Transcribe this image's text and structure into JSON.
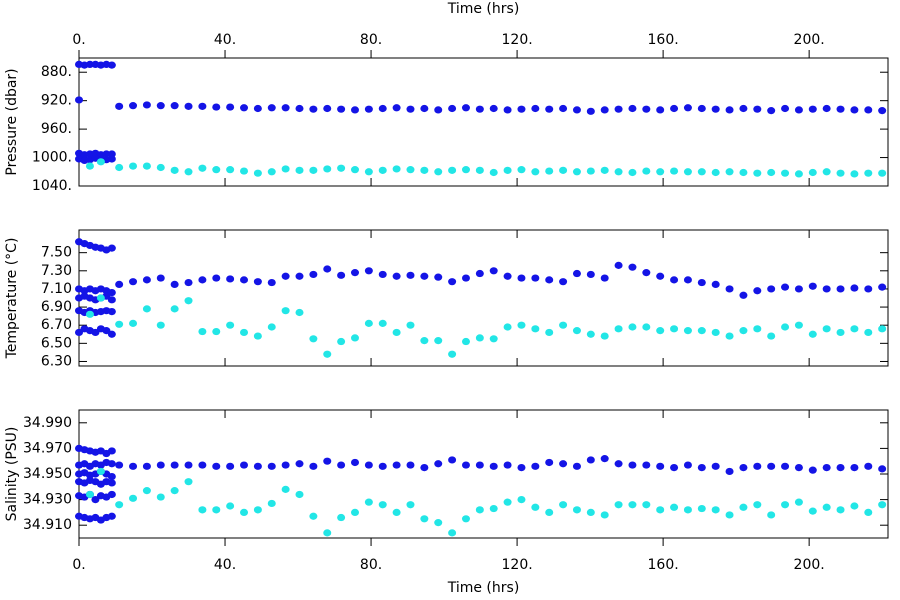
{
  "chart_data": [
    {
      "type": "scatter",
      "xlabel": "Time (hrs)",
      "ylabel": "Pressure (dbar)",
      "xtick_labels": "top",
      "xlim": [
        0,
        221.6
      ],
      "xticks": [
        {
          "value": 0,
          "label": "0."
        },
        {
          "value": 40,
          "label": "40."
        },
        {
          "value": 80,
          "label": "80."
        },
        {
          "value": 120,
          "label": "120."
        },
        {
          "value": 160,
          "label": "160."
        },
        {
          "value": 200,
          "label": "200."
        }
      ],
      "ylim": [
        1040,
        860
      ],
      "yticks": [
        {
          "value": 880,
          "label": "880."
        },
        {
          "value": 920,
          "label": "920."
        },
        {
          "value": 960,
          "label": "960."
        },
        {
          "value": 1000,
          "label": "1000."
        },
        {
          "value": 1040,
          "label": "1040."
        }
      ],
      "x": [
        11,
        14.8,
        18.6,
        22.4,
        26.2,
        30,
        33.8,
        37.6,
        41.4,
        45.2,
        49,
        52.8,
        56.6,
        60.4,
        64.2,
        68,
        71.8,
        75.6,
        79.4,
        83.2,
        87,
        90.8,
        94.6,
        98.4,
        102.2,
        106,
        109.8,
        113.6,
        117.4,
        121.2,
        125,
        128.8,
        132.6,
        136.4,
        140.2,
        144,
        147.8,
        151.6,
        155.4,
        159.2,
        163,
        166.8,
        170.6,
        174.4,
        178.2,
        182,
        185.8,
        189.6,
        193.4,
        197.2,
        201,
        204.8,
        208.6,
        212.4,
        216.2,
        220
      ],
      "series": [
        {
          "color": "#1414e6",
          "values": [
            928,
            927,
            926,
            927,
            927,
            928,
            928,
            929,
            929,
            930,
            931,
            930,
            930,
            931,
            932,
            931,
            932,
            933,
            932,
            931,
            930,
            932,
            931,
            933,
            931,
            930,
            932,
            931,
            933,
            932,
            931,
            932,
            931,
            933,
            935,
            933,
            932,
            931,
            932,
            933,
            931,
            930,
            931,
            932,
            933,
            931,
            932,
            934,
            931,
            933,
            932,
            931,
            932,
            933,
            933,
            934
          ]
        },
        {
          "color": "#22e6e6",
          "values": [
            1014,
            1012,
            1012,
            1014,
            1018,
            1020,
            1015,
            1017,
            1017,
            1019,
            1022,
            1020,
            1016,
            1018,
            1018,
            1016,
            1015,
            1017,
            1020,
            1018,
            1016,
            1017,
            1018,
            1020,
            1018,
            1017,
            1018,
            1021,
            1018,
            1017,
            1020,
            1019,
            1018,
            1020,
            1019,
            1018,
            1020,
            1021,
            1019,
            1020,
            1019,
            1020,
            1020,
            1021,
            1020,
            1021,
            1022,
            1021,
            1022,
            1023,
            1021,
            1020,
            1022,
            1023,
            1022,
            1022
          ]
        },
        {
          "color": "#1414e6",
          "x": [
            0
          ],
          "values": [
            919
          ]
        },
        {
          "color": "#1414e6",
          "x": [
            0,
            1.5,
            3,
            4.5,
            6,
            7.5,
            9
          ],
          "values": [
            869,
            870,
            869,
            869,
            870,
            869,
            870
          ]
        },
        {
          "color": "#1414e6",
          "x": [
            0,
            1.5,
            3,
            4.5,
            6,
            7.5,
            9
          ],
          "values": [
            994,
            996,
            995,
            994,
            996,
            995,
            995
          ]
        },
        {
          "color": "#1414e6",
          "x": [
            0,
            1.5,
            3,
            4.5,
            6,
            7.5,
            9
          ],
          "values": [
            1002,
            1004,
            1003,
            1001,
            1004,
            1003,
            1002
          ]
        },
        {
          "color": "#22e6e6",
          "x": [
            3,
            6
          ],
          "values": [
            1012,
            1006
          ]
        }
      ]
    },
    {
      "type": "scatter",
      "ylabel": "Temperature (°C)",
      "xtick_labels": "none",
      "xlim": [
        0,
        221.6
      ],
      "xticks": [
        {
          "value": 0,
          "label": "0."
        },
        {
          "value": 40,
          "label": "40."
        },
        {
          "value": 80,
          "label": "80."
        },
        {
          "value": 120,
          "label": "120."
        },
        {
          "value": 160,
          "label": "160."
        },
        {
          "value": 200,
          "label": "200."
        }
      ],
      "ylim": [
        6.25,
        7.75
      ],
      "yticks": [
        {
          "value": 6.3,
          "label": "6.30"
        },
        {
          "value": 6.5,
          "label": "6.50"
        },
        {
          "value": 6.7,
          "label": "6.70"
        },
        {
          "value": 6.9,
          "label": "6.90"
        },
        {
          "value": 7.1,
          "label": "7.10"
        },
        {
          "value": 7.3,
          "label": "7.30"
        },
        {
          "value": 7.5,
          "label": "7.50"
        }
      ],
      "x": [
        11,
        14.8,
        18.6,
        22.4,
        26.2,
        30,
        33.8,
        37.6,
        41.4,
        45.2,
        49,
        52.8,
        56.6,
        60.4,
        64.2,
        68,
        71.8,
        75.6,
        79.4,
        83.2,
        87,
        90.8,
        94.6,
        98.4,
        102.2,
        106,
        109.8,
        113.6,
        117.4,
        121.2,
        125,
        128.8,
        132.6,
        136.4,
        140.2,
        144,
        147.8,
        151.6,
        155.4,
        159.2,
        163,
        166.8,
        170.6,
        174.4,
        178.2,
        182,
        185.8,
        189.6,
        193.4,
        197.2,
        201,
        204.8,
        208.6,
        212.4,
        216.2,
        220
      ],
      "series": [
        {
          "color": "#1414e6",
          "values": [
            7.15,
            7.18,
            7.2,
            7.22,
            7.15,
            7.17,
            7.2,
            7.22,
            7.21,
            7.2,
            7.18,
            7.17,
            7.24,
            7.24,
            7.26,
            7.32,
            7.25,
            7.28,
            7.3,
            7.26,
            7.24,
            7.25,
            7.24,
            7.23,
            7.18,
            7.22,
            7.27,
            7.3,
            7.24,
            7.22,
            7.22,
            7.2,
            7.18,
            7.27,
            7.26,
            7.22,
            7.36,
            7.34,
            7.28,
            7.24,
            7.2,
            7.2,
            7.17,
            7.15,
            7.1,
            7.03,
            7.08,
            7.1,
            7.12,
            7.1,
            7.13,
            7.1,
            7.1,
            7.11,
            7.1,
            7.12
          ]
        },
        {
          "color": "#22e6e6",
          "values": [
            6.71,
            6.72,
            6.88,
            6.7,
            6.88,
            6.97,
            6.63,
            6.63,
            6.7,
            6.62,
            6.58,
            6.68,
            6.86,
            6.84,
            6.55,
            6.38,
            6.52,
            6.56,
            6.72,
            6.72,
            6.62,
            6.7,
            6.53,
            6.53,
            6.38,
            6.52,
            6.56,
            6.55,
            6.68,
            6.7,
            6.66,
            6.62,
            6.7,
            6.64,
            6.6,
            6.58,
            6.66,
            6.68,
            6.68,
            6.64,
            6.66,
            6.64,
            6.64,
            6.62,
            6.58,
            6.64,
            6.66,
            6.58,
            6.68,
            6.7,
            6.6,
            6.66,
            6.62,
            6.66,
            6.62,
            6.66
          ]
        },
        {
          "color": "#1414e6",
          "x": [
            0,
            1.5,
            3,
            4.5,
            6,
            7.5,
            9
          ],
          "values": [
            7.62,
            7.6,
            7.58,
            7.56,
            7.55,
            7.53,
            7.55
          ]
        },
        {
          "color": "#1414e6",
          "x": [
            0,
            1.5,
            3,
            4.5,
            6,
            7.5,
            9
          ],
          "values": [
            7.1,
            7.08,
            7.1,
            7.08,
            7.1,
            7.08,
            7.06
          ]
        },
        {
          "color": "#1414e6",
          "x": [
            0,
            1.5,
            3,
            4.5,
            6,
            7.5,
            9
          ],
          "values": [
            7,
            7.02,
            7,
            6.98,
            7,
            7.02,
            6.98
          ]
        },
        {
          "color": "#1414e6",
          "x": [
            0,
            1.5,
            3,
            4.5,
            6,
            7.5,
            9
          ],
          "values": [
            6.86,
            6.84,
            6.86,
            6.84,
            6.85,
            6.86,
            6.85
          ]
        },
        {
          "color": "#1414e6",
          "x": [
            0,
            1.5,
            3,
            4.5,
            6,
            7.5,
            9
          ],
          "values": [
            6.62,
            6.66,
            6.64,
            6.62,
            6.66,
            6.64,
            6.6
          ]
        },
        {
          "color": "#22e6e6",
          "x": [
            3,
            6
          ],
          "values": [
            6.82,
            7
          ]
        }
      ]
    },
    {
      "type": "scatter",
      "xlabel": "Time (hrs)",
      "ylabel": "Salinity (PSU)",
      "xtick_labels": "bottom",
      "xlim": [
        0,
        221.6
      ],
      "xticks": [
        {
          "value": 0,
          "label": "0."
        },
        {
          "value": 40,
          "label": "40."
        },
        {
          "value": 80,
          "label": "80."
        },
        {
          "value": 120,
          "label": "120."
        },
        {
          "value": 160,
          "label": "160."
        },
        {
          "value": 200,
          "label": "200."
        }
      ],
      "ylim": [
        34.9,
        35.0
      ],
      "yticks": [
        {
          "value": 34.91,
          "label": "34.910"
        },
        {
          "value": 34.93,
          "label": "34.930"
        },
        {
          "value": 34.95,
          "label": "34.950"
        },
        {
          "value": 34.97,
          "label": "34.970"
        },
        {
          "value": 34.99,
          "label": "34.990"
        }
      ],
      "x": [
        11,
        14.8,
        18.6,
        22.4,
        26.2,
        30,
        33.8,
        37.6,
        41.4,
        45.2,
        49,
        52.8,
        56.6,
        60.4,
        64.2,
        68,
        71.8,
        75.6,
        79.4,
        83.2,
        87,
        90.8,
        94.6,
        98.4,
        102.2,
        106,
        109.8,
        113.6,
        117.4,
        121.2,
        125,
        128.8,
        132.6,
        136.4,
        140.2,
        144,
        147.8,
        151.6,
        155.4,
        159.2,
        163,
        166.8,
        170.6,
        174.4,
        178.2,
        182,
        185.8,
        189.6,
        193.4,
        197.2,
        201,
        204.8,
        208.6,
        212.4,
        216.2,
        220
      ],
      "series": [
        {
          "color": "#1414e6",
          "values": [
            34.957,
            34.956,
            34.956,
            34.957,
            34.957,
            34.957,
            34.957,
            34.956,
            34.956,
            34.957,
            34.956,
            34.956,
            34.957,
            34.958,
            34.956,
            34.96,
            34.957,
            34.959,
            34.957,
            34.956,
            34.957,
            34.957,
            34.955,
            34.958,
            34.961,
            34.957,
            34.957,
            34.956,
            34.957,
            34.955,
            34.956,
            34.959,
            34.958,
            34.956,
            34.961,
            34.962,
            34.958,
            34.957,
            34.957,
            34.956,
            34.955,
            34.957,
            34.955,
            34.956,
            34.952,
            34.955,
            34.956,
            34.956,
            34.956,
            34.955,
            34.953,
            34.955,
            34.955,
            34.955,
            34.956,
            34.954
          ]
        },
        {
          "color": "#22e6e6",
          "values": [
            34.926,
            34.931,
            34.937,
            34.932,
            34.937,
            34.944,
            34.922,
            34.922,
            34.925,
            34.92,
            34.922,
            34.927,
            34.938,
            34.934,
            34.917,
            34.904,
            34.916,
            34.92,
            34.928,
            34.926,
            34.92,
            34.926,
            34.915,
            34.912,
            34.904,
            34.915,
            34.922,
            34.923,
            34.928,
            34.93,
            34.924,
            34.92,
            34.926,
            34.922,
            34.92,
            34.918,
            34.926,
            34.926,
            34.926,
            34.922,
            34.924,
            34.922,
            34.923,
            34.922,
            34.918,
            34.924,
            34.926,
            34.918,
            34.926,
            34.928,
            34.921,
            34.924,
            34.922,
            34.925,
            34.92,
            34.926
          ]
        },
        {
          "color": "#1414e6",
          "x": [
            0,
            1.5,
            3,
            4.5,
            6,
            7.5,
            9
          ],
          "values": [
            34.97,
            34.969,
            34.968,
            34.967,
            34.968,
            34.966,
            34.968
          ]
        },
        {
          "color": "#1414e6",
          "x": [
            0,
            1.5,
            3,
            4.5,
            6,
            7.5,
            9
          ],
          "values": [
            34.957,
            34.958,
            34.956,
            34.958,
            34.957,
            34.959,
            34.958
          ]
        },
        {
          "color": "#1414e6",
          "x": [
            0,
            1.5,
            3,
            4.5,
            6,
            7.5,
            9
          ],
          "values": [
            34.95,
            34.951,
            34.949,
            34.95,
            34.952,
            34.95,
            34.948
          ]
        },
        {
          "color": "#1414e6",
          "x": [
            0,
            1.5,
            3,
            4.5,
            6,
            7.5,
            9
          ],
          "values": [
            34.944,
            34.943,
            34.945,
            34.944,
            34.942,
            34.944,
            34.943
          ]
        },
        {
          "color": "#1414e6",
          "x": [
            0,
            1.5,
            3,
            4.5,
            6,
            7.5,
            9
          ],
          "values": [
            34.933,
            34.932,
            34.934,
            34.93,
            34.933,
            34.932,
            34.934
          ]
        },
        {
          "color": "#1414e6",
          "x": [
            0,
            1.5,
            3,
            4.5,
            6,
            7.5,
            9
          ],
          "values": [
            34.917,
            34.916,
            34.915,
            34.916,
            34.914,
            34.916,
            34.917
          ]
        },
        {
          "color": "#22e6e6",
          "x": [
            3,
            6
          ],
          "values": [
            34.934,
            34.952
          ]
        }
      ]
    }
  ]
}
